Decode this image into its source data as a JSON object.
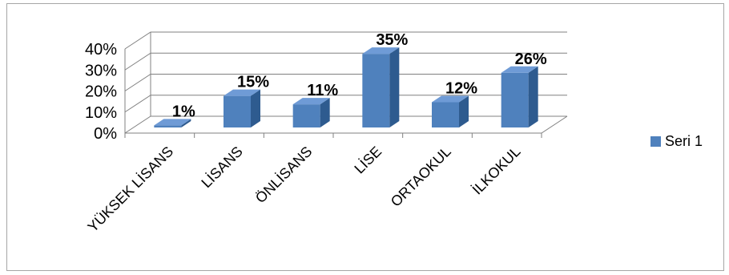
{
  "chart_data": {
    "type": "bar",
    "style": "3d-column",
    "categories": [
      "YÜKSEK LİSANS",
      "LİSANS",
      "ÖNLİSANS",
      "LİSE",
      "ORTAOKUL",
      "İLKOKUL"
    ],
    "series": [
      {
        "name": "Seri 1",
        "values": [
          1,
          15,
          11,
          35,
          12,
          26
        ],
        "color": "#4f81bd"
      }
    ],
    "data_labels": [
      "1%",
      "15%",
      "11%",
      "35%",
      "12%",
      "26%"
    ],
    "y_ticks": [
      "0%",
      "10%",
      "20%",
      "30%",
      "40%"
    ],
    "ylim": [
      0,
      40
    ],
    "grid": true,
    "legend_position": "right",
    "colors": {
      "bar_front": "#4f81bd",
      "bar_top": "#6f9bd6",
      "bar_side": "#2e5b8f",
      "grid": "#808080",
      "frame_border": "#a6a6a6"
    }
  }
}
